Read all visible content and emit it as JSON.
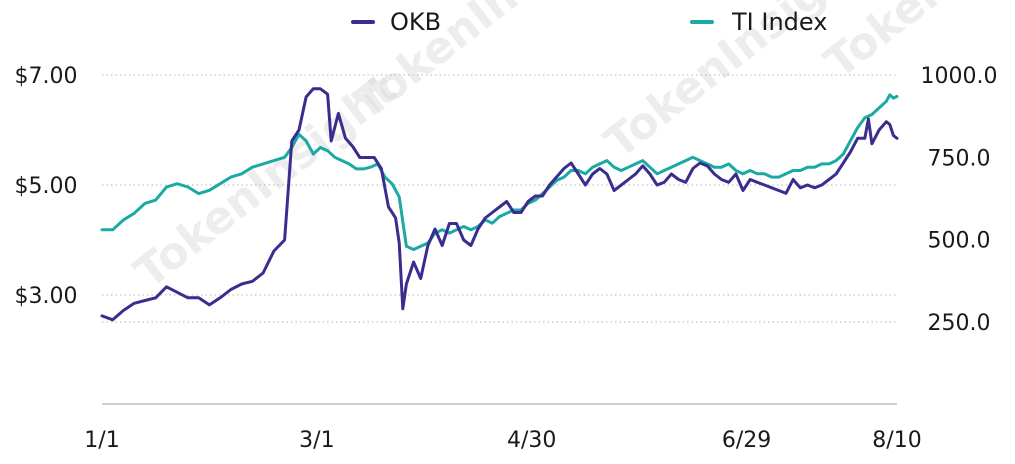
{
  "chart_data": {
    "type": "line",
    "title": "",
    "xlabel": "",
    "ylabel_left": "",
    "ylabel_right": "",
    "x_tick_labels": [
      "1/1",
      "3/1",
      "4/30",
      "6/29",
      "8/10"
    ],
    "x_tick_day_index": [
      0,
      60,
      120,
      180,
      222
    ],
    "y_left": {
      "ticks": [
        3.0,
        5.0,
        7.0
      ],
      "tick_labels": [
        "$3.00",
        "$5.00",
        "$7.00"
      ],
      "range": [
        1.2,
        7.0
      ]
    },
    "y_right": {
      "ticks": [
        250,
        500,
        750,
        1000
      ],
      "tick_labels": [
        "250.0",
        "500.0",
        "750.0",
        "1000.0"
      ],
      "range": [
        0,
        1000
      ]
    },
    "grid": "horizontal-dotted",
    "legend_position": "top",
    "series": [
      {
        "name": "OKB",
        "axis": "left",
        "color": "#3b2c8f",
        "points": [
          [
            0,
            2.62
          ],
          [
            3,
            2.55
          ],
          [
            6,
            2.72
          ],
          [
            9,
            2.85
          ],
          [
            12,
            2.9
          ],
          [
            15,
            2.95
          ],
          [
            18,
            3.15
          ],
          [
            21,
            3.05
          ],
          [
            24,
            2.95
          ],
          [
            27,
            2.95
          ],
          [
            30,
            2.82
          ],
          [
            33,
            2.95
          ],
          [
            36,
            3.1
          ],
          [
            39,
            3.2
          ],
          [
            42,
            3.25
          ],
          [
            45,
            3.4
          ],
          [
            48,
            3.8
          ],
          [
            51,
            4.0
          ],
          [
            53,
            5.8
          ],
          [
            55,
            6.0
          ],
          [
            57,
            6.6
          ],
          [
            59,
            6.75
          ],
          [
            61,
            6.75
          ],
          [
            63,
            6.65
          ],
          [
            64,
            5.8
          ],
          [
            66,
            6.3
          ],
          [
            68,
            5.85
          ],
          [
            70,
            5.7
          ],
          [
            72,
            5.5
          ],
          [
            74,
            5.5
          ],
          [
            76,
            5.5
          ],
          [
            78,
            5.3
          ],
          [
            80,
            4.6
          ],
          [
            81,
            4.5
          ],
          [
            82,
            4.4
          ],
          [
            83,
            3.95
          ],
          [
            84,
            2.75
          ],
          [
            85,
            3.2
          ],
          [
            87,
            3.6
          ],
          [
            89,
            3.3
          ],
          [
            91,
            3.9
          ],
          [
            93,
            4.2
          ],
          [
            95,
            3.9
          ],
          [
            97,
            4.3
          ],
          [
            99,
            4.3
          ],
          [
            101,
            4.0
          ],
          [
            103,
            3.9
          ],
          [
            105,
            4.2
          ],
          [
            107,
            4.4
          ],
          [
            109,
            4.5
          ],
          [
            111,
            4.6
          ],
          [
            113,
            4.7
          ],
          [
            115,
            4.5
          ],
          [
            117,
            4.5
          ],
          [
            119,
            4.7
          ],
          [
            121,
            4.8
          ],
          [
            123,
            4.8
          ],
          [
            125,
            5.0
          ],
          [
            127,
            5.15
          ],
          [
            129,
            5.3
          ],
          [
            131,
            5.4
          ],
          [
            133,
            5.2
          ],
          [
            135,
            5.0
          ],
          [
            137,
            5.2
          ],
          [
            139,
            5.3
          ],
          [
            141,
            5.2
          ],
          [
            143,
            4.9
          ],
          [
            145,
            5.0
          ],
          [
            147,
            5.1
          ],
          [
            149,
            5.2
          ],
          [
            151,
            5.35
          ],
          [
            153,
            5.2
          ],
          [
            155,
            5.0
          ],
          [
            157,
            5.05
          ],
          [
            159,
            5.2
          ],
          [
            161,
            5.1
          ],
          [
            163,
            5.05
          ],
          [
            165,
            5.3
          ],
          [
            167,
            5.4
          ],
          [
            169,
            5.35
          ],
          [
            171,
            5.2
          ],
          [
            173,
            5.1
          ],
          [
            175,
            5.05
          ],
          [
            177,
            5.2
          ],
          [
            179,
            4.9
          ],
          [
            181,
            5.1
          ],
          [
            183,
            5.05
          ],
          [
            185,
            5.0
          ],
          [
            187,
            4.95
          ],
          [
            189,
            4.9
          ],
          [
            191,
            4.85
          ],
          [
            193,
            5.1
          ],
          [
            195,
            4.95
          ],
          [
            197,
            5.0
          ],
          [
            199,
            4.95
          ],
          [
            201,
            5.0
          ],
          [
            203,
            5.1
          ],
          [
            205,
            5.2
          ],
          [
            207,
            5.4
          ],
          [
            209,
            5.6
          ],
          [
            211,
            5.85
          ],
          [
            213,
            5.85
          ],
          [
            214,
            6.2
          ],
          [
            215,
            5.75
          ],
          [
            217,
            6.0
          ],
          [
            219,
            6.15
          ],
          [
            220,
            6.1
          ],
          [
            221,
            5.9
          ],
          [
            222,
            5.85
          ]
        ]
      },
      {
        "name": "TI Index",
        "axis": "right",
        "color": "#1aa9a3",
        "points": [
          [
            0,
            530
          ],
          [
            3,
            530
          ],
          [
            6,
            560
          ],
          [
            9,
            580
          ],
          [
            12,
            610
          ],
          [
            15,
            620
          ],
          [
            18,
            660
          ],
          [
            21,
            670
          ],
          [
            24,
            660
          ],
          [
            27,
            640
          ],
          [
            30,
            650
          ],
          [
            33,
            670
          ],
          [
            36,
            690
          ],
          [
            39,
            700
          ],
          [
            42,
            720
          ],
          [
            45,
            730
          ],
          [
            48,
            740
          ],
          [
            51,
            750
          ],
          [
            53,
            780
          ],
          [
            55,
            820
          ],
          [
            57,
            800
          ],
          [
            59,
            760
          ],
          [
            61,
            780
          ],
          [
            63,
            770
          ],
          [
            65,
            750
          ],
          [
            67,
            740
          ],
          [
            69,
            730
          ],
          [
            71,
            715
          ],
          [
            73,
            715
          ],
          [
            75,
            720
          ],
          [
            77,
            730
          ],
          [
            79,
            690
          ],
          [
            81,
            670
          ],
          [
            83,
            630
          ],
          [
            85,
            480
          ],
          [
            87,
            470
          ],
          [
            89,
            480
          ],
          [
            91,
            490
          ],
          [
            93,
            520
          ],
          [
            95,
            530
          ],
          [
            97,
            520
          ],
          [
            99,
            530
          ],
          [
            101,
            540
          ],
          [
            103,
            530
          ],
          [
            105,
            540
          ],
          [
            107,
            560
          ],
          [
            109,
            550
          ],
          [
            111,
            570
          ],
          [
            113,
            580
          ],
          [
            115,
            590
          ],
          [
            117,
            590
          ],
          [
            119,
            610
          ],
          [
            121,
            620
          ],
          [
            123,
            640
          ],
          [
            125,
            660
          ],
          [
            127,
            680
          ],
          [
            129,
            690
          ],
          [
            131,
            710
          ],
          [
            133,
            710
          ],
          [
            135,
            700
          ],
          [
            137,
            720
          ],
          [
            139,
            730
          ],
          [
            141,
            740
          ],
          [
            143,
            720
          ],
          [
            145,
            710
          ],
          [
            147,
            720
          ],
          [
            149,
            730
          ],
          [
            151,
            740
          ],
          [
            153,
            720
          ],
          [
            155,
            700
          ],
          [
            157,
            710
          ],
          [
            159,
            720
          ],
          [
            161,
            730
          ],
          [
            163,
            740
          ],
          [
            165,
            750
          ],
          [
            167,
            740
          ],
          [
            169,
            730
          ],
          [
            171,
            720
          ],
          [
            173,
            720
          ],
          [
            175,
            730
          ],
          [
            177,
            710
          ],
          [
            179,
            700
          ],
          [
            181,
            710
          ],
          [
            183,
            700
          ],
          [
            185,
            700
          ],
          [
            187,
            690
          ],
          [
            189,
            690
          ],
          [
            191,
            700
          ],
          [
            193,
            710
          ],
          [
            195,
            710
          ],
          [
            197,
            720
          ],
          [
            199,
            720
          ],
          [
            201,
            730
          ],
          [
            203,
            730
          ],
          [
            205,
            740
          ],
          [
            207,
            760
          ],
          [
            209,
            800
          ],
          [
            211,
            840
          ],
          [
            213,
            870
          ],
          [
            215,
            880
          ],
          [
            217,
            900
          ],
          [
            219,
            920
          ],
          [
            220,
            940
          ],
          [
            221,
            930
          ],
          [
            222,
            935
          ]
        ]
      }
    ]
  },
  "watermark": "TokenInsight"
}
